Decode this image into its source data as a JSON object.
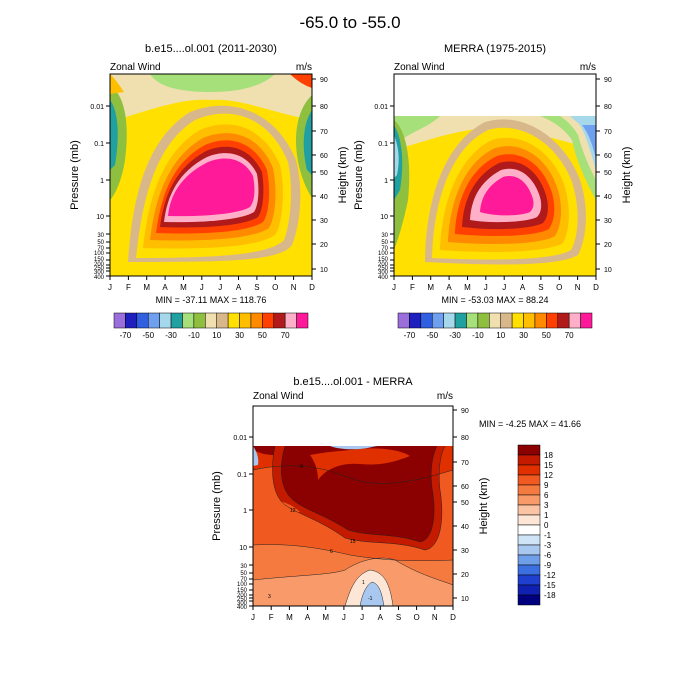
{
  "figure": {
    "title": "-65.0 to -55.0"
  },
  "chart_data": [
    {
      "type": "heatmap",
      "title": "b.e15....ol.001 (2011-2030)",
      "subtitle_left": "Zonal Wind",
      "subtitle_right": "m/s",
      "ylabel": "Pressure (mb)",
      "ylabel_right": "Height (km)",
      "x_ticks": [
        "J",
        "F",
        "M",
        "A",
        "M",
        "J",
        "J",
        "A",
        "S",
        "O",
        "N",
        "D"
      ],
      "y_ticks": [
        "0.01",
        "0.1",
        "1",
        "10",
        "30",
        "50",
        "70",
        "100",
        "150",
        "200",
        "250",
        "300",
        "400"
      ],
      "height_ticks": [
        "10",
        "20",
        "30",
        "40",
        "50",
        "60",
        "70",
        "80",
        "90"
      ],
      "min_max_text": "MIN = -37.11  MAX = 118.76",
      "legend_labels": [
        "-70",
        "-50",
        "-30",
        "-10",
        "10",
        "30",
        "50",
        "70"
      ],
      "legend_colors": [
        "#9b6fdb",
        "#1f1fbf",
        "#3060df",
        "#6f9fef",
        "#a6d8ec",
        "#20a0a0",
        "#a6e07a",
        "#8fbf3f",
        "#f0e0b0",
        "#d8b88a",
        "#ffe000",
        "#ffbf00",
        "#ff8a00",
        "#ff4000",
        "#b01a1a",
        "#ffb0c8",
        "#ff1a9a"
      ],
      "levels": [
        -80,
        -70,
        -60,
        -50,
        -40,
        -30,
        -20,
        -10,
        0,
        10,
        20,
        30,
        40,
        50,
        60,
        70,
        80,
        90
      ]
    },
    {
      "type": "heatmap",
      "title": "MERRA (1975-2015)",
      "subtitle_left": "Zonal Wind",
      "subtitle_right": "m/s",
      "ylabel": "Pressure (mb)",
      "ylabel_right": "Height (km)",
      "x_ticks": [
        "J",
        "F",
        "M",
        "A",
        "M",
        "J",
        "J",
        "A",
        "S",
        "O",
        "N",
        "D"
      ],
      "y_ticks": [
        "0.01",
        "0.1",
        "1",
        "10",
        "30",
        "50",
        "70",
        "100",
        "150",
        "200",
        "250",
        "300",
        "400"
      ],
      "height_ticks": [
        "10",
        "20",
        "30",
        "40",
        "50",
        "60",
        "70",
        "80",
        "90"
      ],
      "min_max_text": "MIN = -53.03  MAX = 88.24",
      "legend_labels": [
        "-70",
        "-50",
        "-30",
        "-10",
        "10",
        "30",
        "50",
        "70"
      ],
      "legend_colors": [
        "#9b6fdb",
        "#1f1fbf",
        "#3060df",
        "#6f9fef",
        "#a6d8ec",
        "#20a0a0",
        "#a6e07a",
        "#8fbf3f",
        "#f0e0b0",
        "#d8b88a",
        "#ffe000",
        "#ffbf00",
        "#ff8a00",
        "#ff4000",
        "#b01a1a",
        "#ffb0c8",
        "#ff1a9a"
      ]
    },
    {
      "type": "heatmap",
      "title": "b.e15....ol.001 - MERRA",
      "subtitle_left": "Zonal Wind",
      "subtitle_right": "m/s",
      "ylabel": "Pressure (mb)",
      "ylabel_right": "Height (km)",
      "x_ticks": [
        "J",
        "F",
        "M",
        "A",
        "M",
        "J",
        "J",
        "A",
        "S",
        "O",
        "N",
        "D"
      ],
      "y_ticks": [
        "0.01",
        "0.1",
        "1",
        "10",
        "30",
        "50",
        "70",
        "100",
        "150",
        "200",
        "250",
        "300",
        "400"
      ],
      "height_ticks": [
        "10",
        "20",
        "30",
        "40",
        "50",
        "60",
        "70",
        "80",
        "90"
      ],
      "min_max_text": "MIN = -4.25  MAX = 41.66",
      "legend_labels": [
        "18",
        "15",
        "12",
        "9",
        "6",
        "3",
        "1",
        "0",
        "-1",
        "-3",
        "-6",
        "-9",
        "-12",
        "-15",
        "-18"
      ],
      "legend_colors": [
        "#8b0000",
        "#c41a00",
        "#e03000",
        "#f05a20",
        "#f57a40",
        "#f89a6a",
        "#fbc4a4",
        "#fde6d6",
        "#ffffff",
        "#d0e4f8",
        "#a8c8f0",
        "#6f9fe8",
        "#3c6fe0",
        "#1f3fcf",
        "#1020b0",
        "#00007f"
      ],
      "contour_labels": [
        "15",
        "12",
        "9",
        "6",
        "3",
        "1",
        "-1"
      ]
    }
  ]
}
